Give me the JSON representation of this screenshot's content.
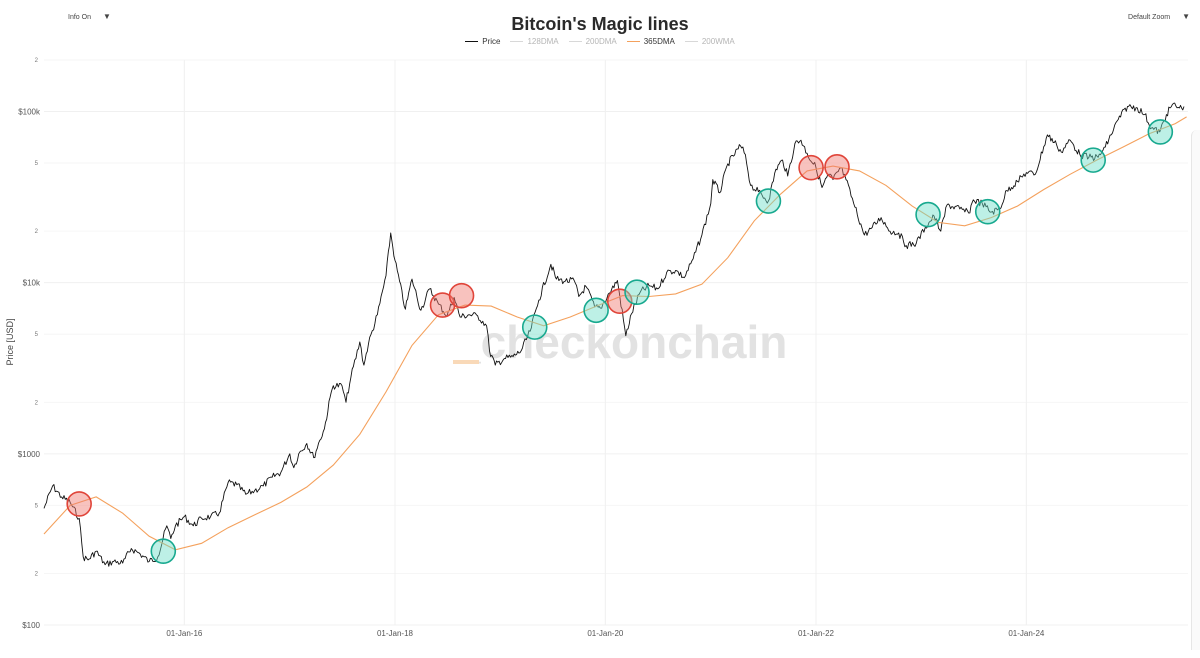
{
  "controls": {
    "info": "Info On",
    "zoom": "Default Zoom",
    "dropdown_glyph": "▼"
  },
  "watermark": "_checkonchain",
  "colors": {
    "price": "#111111",
    "dma365": "#f4a15d",
    "buy_fill": "rgba(108,222,200,0.45)",
    "buy_stroke": "#18a98f",
    "sell_fill": "rgba(240,120,110,0.45)",
    "sell_stroke": "#e0453a",
    "grid": "#f0f0f0"
  },
  "chart_data": {
    "type": "line",
    "title": "Bitcoin's Magic lines",
    "ylabel": "Price [USD]",
    "yscale": "log",
    "ylim": [
      100,
      200000
    ],
    "xlim": [
      "2014-09-01",
      "2025-07-15"
    ],
    "x_ticks": [
      "01-Jan-16",
      "01-Jan-18",
      "01-Jan-20",
      "01-Jan-22",
      "01-Jan-24"
    ],
    "x_tick_dates": [
      "2016-01-01",
      "2018-01-01",
      "2020-01-01",
      "2022-01-01",
      "2024-01-01"
    ],
    "y_major_ticks": [
      {
        "value": 100,
        "label": "$100"
      },
      {
        "value": 1000,
        "label": "$1000"
      },
      {
        "value": 10000,
        "label": "$10k"
      },
      {
        "value": 100000,
        "label": "$100k"
      }
    ],
    "y_minor_ticks": [
      {
        "value": 200,
        "label": "2"
      },
      {
        "value": 500,
        "label": "5"
      },
      {
        "value": 2000,
        "label": "2"
      },
      {
        "value": 5000,
        "label": "5"
      },
      {
        "value": 20000,
        "label": "2"
      },
      {
        "value": 50000,
        "label": "5"
      },
      {
        "value": 200000,
        "label": "2"
      }
    ],
    "legend": [
      {
        "name": "Price",
        "visible": true
      },
      {
        "name": "128DMA",
        "visible": false
      },
      {
        "name": "200DMA",
        "visible": false
      },
      {
        "name": "365DMA",
        "visible": true
      },
      {
        "name": "200WMA",
        "visible": false
      }
    ],
    "series": [
      {
        "name": "Price",
        "points": [
          [
            "2014-09-01",
            480
          ],
          [
            "2014-10-01",
            650
          ],
          [
            "2014-11-01",
            560
          ],
          [
            "2014-12-01",
            520
          ],
          [
            "2015-01-01",
            420
          ],
          [
            "2015-01-15",
            250
          ],
          [
            "2015-02-01",
            240
          ],
          [
            "2015-03-01",
            270
          ],
          [
            "2015-04-01",
            225
          ],
          [
            "2015-05-01",
            235
          ],
          [
            "2015-06-01",
            230
          ],
          [
            "2015-07-01",
            280
          ],
          [
            "2015-08-01",
            260
          ],
          [
            "2015-09-01",
            235
          ],
          [
            "2015-10-01",
            250
          ],
          [
            "2015-11-01",
            380
          ],
          [
            "2015-11-15",
            320
          ],
          [
            "2015-12-01",
            380
          ],
          [
            "2016-01-01",
            430
          ],
          [
            "2016-02-01",
            380
          ],
          [
            "2016-03-01",
            420
          ],
          [
            "2016-04-01",
            430
          ],
          [
            "2016-05-01",
            450
          ],
          [
            "2016-06-01",
            680
          ],
          [
            "2016-07-01",
            660
          ],
          [
            "2016-08-01",
            580
          ],
          [
            "2016-09-01",
            610
          ],
          [
            "2016-10-01",
            650
          ],
          [
            "2016-11-01",
            730
          ],
          [
            "2016-12-01",
            780
          ],
          [
            "2017-01-01",
            1000
          ],
          [
            "2017-01-15",
            830
          ],
          [
            "2017-02-01",
            1000
          ],
          [
            "2017-03-01",
            1150
          ],
          [
            "2017-03-25",
            950
          ],
          [
            "2017-04-15",
            1200
          ],
          [
            "2017-05-01",
            1400
          ],
          [
            "2017-05-25",
            2300
          ],
          [
            "2017-06-01",
            2500
          ],
          [
            "2017-07-01",
            2500
          ],
          [
            "2017-07-15",
            2000
          ],
          [
            "2017-08-01",
            2800
          ],
          [
            "2017-09-01",
            4500
          ],
          [
            "2017-09-15",
            3300
          ],
          [
            "2017-10-01",
            4400
          ],
          [
            "2017-11-01",
            6500
          ],
          [
            "2017-12-01",
            11000
          ],
          [
            "2017-12-17",
            19500
          ],
          [
            "2018-01-01",
            13500
          ],
          [
            "2018-02-06",
            7000
          ],
          [
            "2018-03-01",
            10500
          ],
          [
            "2018-04-01",
            6900
          ],
          [
            "2018-05-01",
            9200
          ],
          [
            "2018-06-01",
            7500
          ],
          [
            "2018-07-01",
            6400
          ],
          [
            "2018-07-25",
            8200
          ],
          [
            "2018-08-15",
            6300
          ],
          [
            "2018-09-15",
            6500
          ],
          [
            "2018-10-15",
            6400
          ],
          [
            "2018-11-15",
            5600
          ],
          [
            "2018-11-25",
            4000
          ],
          [
            "2018-12-15",
            3300
          ],
          [
            "2019-01-15",
            3600
          ],
          [
            "2019-02-15",
            3700
          ],
          [
            "2019-03-15",
            4000
          ],
          [
            "2019-04-15",
            5200
          ],
          [
            "2019-05-15",
            7900
          ],
          [
            "2019-06-26",
            12800
          ],
          [
            "2019-07-15",
            10500
          ],
          [
            "2019-08-15",
            10200
          ],
          [
            "2019-09-15",
            10300
          ],
          [
            "2019-10-01",
            8300
          ],
          [
            "2019-10-26",
            9500
          ],
          [
            "2019-11-25",
            7200
          ],
          [
            "2019-12-15",
            7100
          ],
          [
            "2020-01-15",
            8700
          ],
          [
            "2020-02-12",
            10300
          ],
          [
            "2020-03-12",
            4900
          ],
          [
            "2020-04-01",
            6600
          ],
          [
            "2020-05-01",
            8800
          ],
          [
            "2020-06-01",
            9600
          ],
          [
            "2020-07-01",
            9200
          ],
          [
            "2020-08-01",
            11500
          ],
          [
            "2020-09-01",
            11800
          ],
          [
            "2020-10-01",
            10700
          ],
          [
            "2020-11-01",
            13800
          ],
          [
            "2020-12-01",
            19000
          ],
          [
            "2021-01-01",
            29000
          ],
          [
            "2021-01-08",
            40000
          ],
          [
            "2021-02-01",
            33500
          ],
          [
            "2021-03-01",
            49500
          ],
          [
            "2021-04-14",
            63000
          ],
          [
            "2021-05-01",
            56000
          ],
          [
            "2021-05-19",
            37000
          ],
          [
            "2021-06-15",
            34000
          ],
          [
            "2021-07-20",
            30000
          ],
          [
            "2021-08-15",
            46000
          ],
          [
            "2021-09-07",
            52000
          ],
          [
            "2021-09-25",
            42000
          ],
          [
            "2021-10-20",
            65000
          ],
          [
            "2021-11-10",
            68000
          ],
          [
            "2021-12-01",
            57000
          ],
          [
            "2022-01-01",
            47000
          ],
          [
            "2022-01-22",
            36000
          ],
          [
            "2022-02-15",
            43000
          ],
          [
            "2022-03-01",
            40000
          ],
          [
            "2022-03-28",
            47000
          ],
          [
            "2022-04-15",
            40000
          ],
          [
            "2022-05-12",
            29000
          ],
          [
            "2022-06-18",
            19000
          ],
          [
            "2022-07-15",
            21000
          ],
          [
            "2022-08-15",
            24000
          ],
          [
            "2022-09-15",
            20000
          ],
          [
            "2022-10-15",
            19500
          ],
          [
            "2022-11-10",
            16500
          ],
          [
            "2022-12-15",
            17000
          ],
          [
            "2023-01-15",
            21000
          ],
          [
            "2023-02-15",
            24500
          ],
          [
            "2023-03-10",
            20000
          ],
          [
            "2023-04-01",
            28500
          ],
          [
            "2023-05-15",
            27000
          ],
          [
            "2023-06-15",
            25500
          ],
          [
            "2023-07-01",
            30500
          ],
          [
            "2023-08-01",
            29000
          ],
          [
            "2023-09-01",
            25800
          ],
          [
            "2023-10-01",
            27000
          ],
          [
            "2023-10-25",
            34500
          ],
          [
            "2023-12-01",
            39000
          ],
          [
            "2024-01-01",
            44000
          ],
          [
            "2024-02-01",
            43000
          ],
          [
            "2024-03-14",
            73000
          ],
          [
            "2024-04-15",
            64000
          ],
          [
            "2024-05-01",
            58000
          ],
          [
            "2024-06-01",
            68000
          ],
          [
            "2024-07-05",
            56000
          ],
          [
            "2024-08-05",
            54000
          ],
          [
            "2024-09-06",
            54000
          ],
          [
            "2024-10-01",
            62000
          ],
          [
            "2024-11-15",
            90000
          ],
          [
            "2024-12-17",
            107000
          ],
          [
            "2025-01-20",
            105000
          ],
          [
            "2025-02-15",
            96000
          ],
          [
            "2025-03-10",
            80000
          ],
          [
            "2025-04-08",
            76000
          ],
          [
            "2025-05-01",
            96000
          ],
          [
            "2025-05-22",
            110000
          ],
          [
            "2025-06-15",
            105000
          ],
          [
            "2025-07-01",
            107000
          ]
        ]
      },
      {
        "name": "365DMA",
        "points": [
          [
            "2014-09-01",
            340
          ],
          [
            "2014-12-01",
            500
          ],
          [
            "2015-03-01",
            560
          ],
          [
            "2015-06-01",
            450
          ],
          [
            "2015-09-01",
            330
          ],
          [
            "2015-12-01",
            275
          ],
          [
            "2016-03-01",
            300
          ],
          [
            "2016-06-01",
            370
          ],
          [
            "2016-09-01",
            440
          ],
          [
            "2016-12-01",
            520
          ],
          [
            "2017-03-01",
            640
          ],
          [
            "2017-06-01",
            860
          ],
          [
            "2017-09-01",
            1300
          ],
          [
            "2017-12-01",
            2300
          ],
          [
            "2018-03-01",
            4300
          ],
          [
            "2018-06-01",
            6500
          ],
          [
            "2018-09-01",
            7400
          ],
          [
            "2018-12-01",
            7300
          ],
          [
            "2019-03-01",
            6300
          ],
          [
            "2019-06-01",
            5600
          ],
          [
            "2019-09-01",
            6300
          ],
          [
            "2019-12-01",
            7300
          ],
          [
            "2020-03-01",
            8400
          ],
          [
            "2020-06-01",
            8300
          ],
          [
            "2020-09-01",
            8600
          ],
          [
            "2020-12-01",
            9800
          ],
          [
            "2021-03-01",
            14000
          ],
          [
            "2021-06-01",
            23000
          ],
          [
            "2021-09-01",
            33000
          ],
          [
            "2021-12-01",
            45000
          ],
          [
            "2022-03-01",
            48000
          ],
          [
            "2022-06-01",
            45000
          ],
          [
            "2022-09-01",
            37000
          ],
          [
            "2022-12-01",
            28000
          ],
          [
            "2023-03-01",
            22500
          ],
          [
            "2023-06-01",
            21500
          ],
          [
            "2023-09-01",
            24000
          ],
          [
            "2023-12-01",
            28000
          ],
          [
            "2024-03-01",
            35000
          ],
          [
            "2024-06-01",
            43000
          ],
          [
            "2024-09-01",
            52000
          ],
          [
            "2024-12-01",
            62000
          ],
          [
            "2025-03-01",
            74000
          ],
          [
            "2025-06-01",
            85000
          ],
          [
            "2025-07-10",
            93000
          ]
        ]
      }
    ],
    "markers": {
      "sell": [
        [
          "2015-01-01",
          510
        ],
        [
          "2018-06-15",
          7400
        ],
        [
          "2018-08-20",
          8400
        ],
        [
          "2020-02-20",
          7800
        ],
        [
          "2021-12-15",
          47000
        ],
        [
          "2022-03-15",
          47500
        ]
      ],
      "buy": [
        [
          "2015-10-20",
          270
        ],
        [
          "2019-05-01",
          5500
        ],
        [
          "2019-11-30",
          6900
        ],
        [
          "2020-04-20",
          8800
        ],
        [
          "2021-07-20",
          30000
        ],
        [
          "2023-01-25",
          25000
        ],
        [
          "2023-08-20",
          26000
        ],
        [
          "2024-08-20",
          52000
        ],
        [
          "2025-04-10",
          76000
        ]
      ]
    }
  }
}
